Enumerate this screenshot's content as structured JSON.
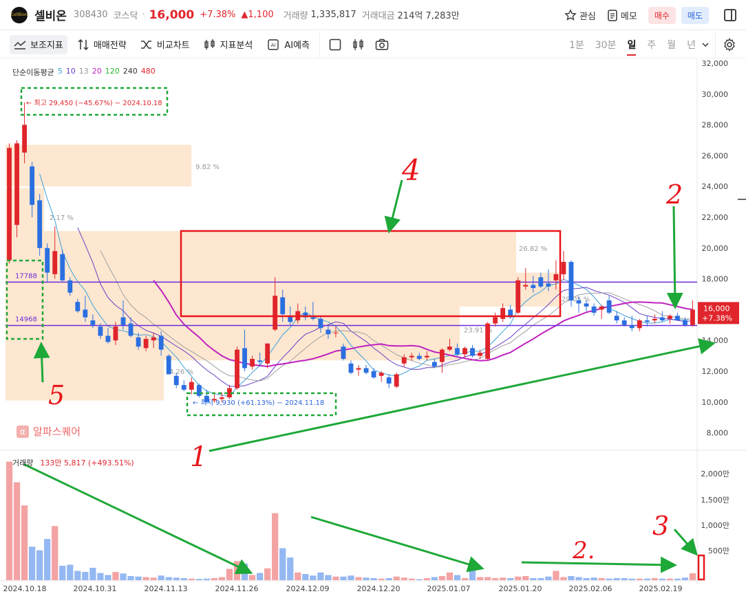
{
  "header": {
    "logo_text": "CellBion",
    "stock_name": "셀비온",
    "stock_code": "308430",
    "market": "코스닥",
    "separator": "·",
    "price": "16,000",
    "change_pct": "+7.38%",
    "change_abs": "▲1,100",
    "volume_label": "거래량",
    "volume_value": "1,335,817",
    "amount_label": "거래대금",
    "amount_value": "214억 7,283만",
    "watch_label": "관심",
    "memo_label": "메모",
    "buy_label": "매수",
    "sell_label": "매도"
  },
  "toolbar": {
    "indicators_label": "보조지표",
    "strategy_label": "매매전략",
    "compare_label": "비교차트",
    "analysis_label": "지표분석",
    "ai_label": "AI예측",
    "periods": [
      "1분",
      "30분",
      "일",
      "주",
      "월",
      "년"
    ],
    "selected_period": "일"
  },
  "ma_legend": {
    "title": "단순이동평균",
    "items": [
      {
        "label": "5",
        "color": "#3aa0d8"
      },
      {
        "label": "10",
        "color": "#6a3cc7"
      },
      {
        "label": "13",
        "color": "#999999"
      },
      {
        "label": "20",
        "color": "#c020c0"
      },
      {
        "label": "120",
        "color": "#2ab52a"
      },
      {
        "label": "240",
        "color": "#333333"
      },
      {
        "label": "480",
        "color": "#e0252c"
      }
    ]
  },
  "volume_legend": {
    "label": "거래량",
    "value": "133만 5,817 (+493.51%)"
  },
  "watermark": "알파스퀘어",
  "colors": {
    "up": "#e0252c",
    "down": "#2b6fe0",
    "vol_up": "#f3a3a3",
    "vol_down": "#94b8f2",
    "zone": "#fde3c8",
    "level_line": "#6a2bd8",
    "annotation_green": "#1ea838",
    "annotation_red": "#e8161b"
  },
  "chart_data": {
    "type": "candlestick",
    "y_ticks": [
      "32,000",
      "30,000",
      "28,000",
      "26,000",
      "24,000",
      "22,000",
      "20,000",
      "18,000",
      "16,000",
      "14,000",
      "12,000",
      "10,000",
      "8,000"
    ],
    "ylim": [
      7000,
      32500
    ],
    "volume_ticks": [
      "2,000만",
      "1,500만",
      "1,000만",
      "500만"
    ],
    "x_ticks": [
      "2024.10.18",
      "2024.10.31",
      "2024.11.13",
      "2024.11.26",
      "2024.12.09",
      "2024.12.20",
      "2025.01.07",
      "2025.01.20",
      "2025.02.06",
      "2025.02.19"
    ],
    "last_price_label": "16,000",
    "last_change_label": "+7.38%",
    "high_label": "최고 29,450 (−45.67%) − 2024.10.18",
    "low_label": "최저 9,930 (+61.13%) − 2024.11.18",
    "levels": [
      {
        "label": "17788",
        "value": 17788
      },
      {
        "label": "14968",
        "value": 14968
      }
    ],
    "zones": [
      {
        "label": "9.82 %",
        "from": 24000,
        "to": 26700
      },
      {
        "label": "2.17 %",
        "from": 10100,
        "to": 23900
      },
      {
        "label": "26.82 %",
        "from": 12700,
        "to": 21100
      },
      {
        "label": "23.91 %",
        "from": 12700,
        "to": 15500
      },
      {
        "label": "29.05 %",
        "from": 12700,
        "to": 18400
      },
      {
        "label": "4.26 %",
        "from": 10100,
        "to": 12600
      }
    ],
    "handwritten_labels": [
      "1",
      "2",
      "3",
      "4",
      "5",
      "2."
    ],
    "candles": [
      {
        "o": 19200,
        "h": 26800,
        "l": 19000,
        "c": 26500
      },
      {
        "o": 21500,
        "h": 27000,
        "l": 20700,
        "c": 26800
      },
      {
        "o": 26200,
        "h": 29450,
        "l": 25500,
        "c": 28000
      },
      {
        "o": 25300,
        "h": 25600,
        "l": 22000,
        "c": 22800
      },
      {
        "o": 23100,
        "h": 23500,
        "l": 19500,
        "c": 20000
      },
      {
        "o": 20000,
        "h": 20300,
        "l": 17800,
        "c": 18400
      },
      {
        "o": 18300,
        "h": 21400,
        "l": 18000,
        "c": 19800
      },
      {
        "o": 19600,
        "h": 19900,
        "l": 17800,
        "c": 17900
      },
      {
        "o": 17900,
        "h": 18100,
        "l": 16900,
        "c": 17100
      },
      {
        "o": 16500,
        "h": 16700,
        "l": 15800,
        "c": 15900
      },
      {
        "o": 16000,
        "h": 16900,
        "l": 15200,
        "c": 15500
      },
      {
        "o": 15300,
        "h": 15700,
        "l": 14800,
        "c": 15000
      },
      {
        "o": 14900,
        "h": 15100,
        "l": 14100,
        "c": 14300
      },
      {
        "o": 14300,
        "h": 14800,
        "l": 13800,
        "c": 13900
      },
      {
        "o": 14000,
        "h": 15200,
        "l": 13700,
        "c": 14900
      },
      {
        "o": 15500,
        "h": 16600,
        "l": 14700,
        "c": 15000
      },
      {
        "o": 15100,
        "h": 15500,
        "l": 14200,
        "c": 14300
      },
      {
        "o": 14200,
        "h": 14500,
        "l": 13400,
        "c": 13600
      },
      {
        "o": 13500,
        "h": 14300,
        "l": 13300,
        "c": 14100
      },
      {
        "o": 14000,
        "h": 14500,
        "l": 13500,
        "c": 14200
      },
      {
        "o": 14300,
        "h": 14600,
        "l": 13000,
        "c": 13400
      },
      {
        "o": 13000,
        "h": 13100,
        "l": 11800,
        "c": 11800
      },
      {
        "o": 11700,
        "h": 11900,
        "l": 10900,
        "c": 11100
      },
      {
        "o": 11100,
        "h": 11400,
        "l": 10700,
        "c": 10800
      },
      {
        "o": 10800,
        "h": 11600,
        "l": 10500,
        "c": 11300
      },
      {
        "o": 11100,
        "h": 11200,
        "l": 10300,
        "c": 10400
      },
      {
        "o": 10400,
        "h": 10800,
        "l": 9930,
        "c": 10000
      },
      {
        "o": 10100,
        "h": 10500,
        "l": 9950,
        "c": 10200
      },
      {
        "o": 10200,
        "h": 10600,
        "l": 10000,
        "c": 10300
      },
      {
        "o": 10300,
        "h": 11100,
        "l": 10200,
        "c": 10900
      },
      {
        "o": 10900,
        "h": 13600,
        "l": 10800,
        "c": 13400
      },
      {
        "o": 13500,
        "h": 14700,
        "l": 12000,
        "c": 12200
      },
      {
        "o": 12300,
        "h": 13000,
        "l": 12100,
        "c": 12800
      },
      {
        "o": 12700,
        "h": 13200,
        "l": 12300,
        "c": 12600
      },
      {
        "o": 12500,
        "h": 13800,
        "l": 12200,
        "c": 13800
      },
      {
        "o": 14700,
        "h": 18100,
        "l": 14600,
        "c": 16900
      },
      {
        "o": 16800,
        "h": 17300,
        "l": 15200,
        "c": 15700
      },
      {
        "o": 15600,
        "h": 16200,
        "l": 15000,
        "c": 15200
      },
      {
        "o": 15300,
        "h": 16400,
        "l": 15100,
        "c": 15900
      },
      {
        "o": 15800,
        "h": 16200,
        "l": 15300,
        "c": 15500
      },
      {
        "o": 15500,
        "h": 16500,
        "l": 15300,
        "c": 15400
      },
      {
        "o": 15400,
        "h": 15600,
        "l": 14500,
        "c": 14800
      },
      {
        "o": 14700,
        "h": 15000,
        "l": 14100,
        "c": 14400
      },
      {
        "o": 14500,
        "h": 14900,
        "l": 14200,
        "c": 14500
      },
      {
        "o": 13600,
        "h": 13800,
        "l": 12700,
        "c": 12800
      },
      {
        "o": 12500,
        "h": 12700,
        "l": 11800,
        "c": 11900
      },
      {
        "o": 12100,
        "h": 12400,
        "l": 11700,
        "c": 12200
      },
      {
        "o": 12200,
        "h": 12400,
        "l": 11800,
        "c": 11900
      },
      {
        "o": 12000,
        "h": 12200,
        "l": 11500,
        "c": 11600
      },
      {
        "o": 11700,
        "h": 12000,
        "l": 11300,
        "c": 11900
      },
      {
        "o": 11600,
        "h": 11800,
        "l": 10900,
        "c": 11200
      },
      {
        "o": 11000,
        "h": 11900,
        "l": 10900,
        "c": 11800
      },
      {
        "o": 12500,
        "h": 13100,
        "l": 12300,
        "c": 12900
      },
      {
        "o": 12900,
        "h": 13200,
        "l": 12700,
        "c": 13000
      },
      {
        "o": 13000,
        "h": 13200,
        "l": 12700,
        "c": 12800
      },
      {
        "o": 12900,
        "h": 13300,
        "l": 12700,
        "c": 13000
      },
      {
        "o": 12600,
        "h": 12800,
        "l": 12200,
        "c": 12300
      },
      {
        "o": 12600,
        "h": 13500,
        "l": 11900,
        "c": 13400
      },
      {
        "o": 13400,
        "h": 14100,
        "l": 13300,
        "c": 13600
      },
      {
        "o": 13500,
        "h": 13800,
        "l": 12900,
        "c": 13100
      },
      {
        "o": 13100,
        "h": 13600,
        "l": 12900,
        "c": 13500
      },
      {
        "o": 13500,
        "h": 13700,
        "l": 12900,
        "c": 13000
      },
      {
        "o": 13000,
        "h": 13400,
        "l": 12800,
        "c": 13200
      },
      {
        "o": 12800,
        "h": 15200,
        "l": 12700,
        "c": 15100
      },
      {
        "o": 15100,
        "h": 15800,
        "l": 14900,
        "c": 15500
      },
      {
        "o": 15400,
        "h": 16400,
        "l": 15200,
        "c": 16100
      },
      {
        "o": 16000,
        "h": 16300,
        "l": 15400,
        "c": 15500
      },
      {
        "o": 15800,
        "h": 18100,
        "l": 15700,
        "c": 17900
      },
      {
        "o": 17500,
        "h": 18700,
        "l": 17300,
        "c": 17600
      },
      {
        "o": 17600,
        "h": 18200,
        "l": 17100,
        "c": 17400
      },
      {
        "o": 18100,
        "h": 18400,
        "l": 17400,
        "c": 17500
      },
      {
        "o": 17700,
        "h": 18600,
        "l": 17200,
        "c": 17500
      },
      {
        "o": 17900,
        "h": 19200,
        "l": 17300,
        "c": 18300
      },
      {
        "o": 18300,
        "h": 19800,
        "l": 17900,
        "c": 19100
      },
      {
        "o": 19100,
        "h": 19200,
        "l": 16200,
        "c": 16600
      },
      {
        "o": 16600,
        "h": 16800,
        "l": 15800,
        "c": 16400
      },
      {
        "o": 16400,
        "h": 16600,
        "l": 15900,
        "c": 16200
      },
      {
        "o": 16200,
        "h": 16400,
        "l": 15600,
        "c": 15800
      },
      {
        "o": 16000,
        "h": 16300,
        "l": 15400,
        "c": 16200
      },
      {
        "o": 16600,
        "h": 16900,
        "l": 15700,
        "c": 15800
      },
      {
        "o": 15600,
        "h": 15900,
        "l": 15100,
        "c": 15300
      },
      {
        "o": 15300,
        "h": 15500,
        "l": 14900,
        "c": 15000
      },
      {
        "o": 15000,
        "h": 15600,
        "l": 14600,
        "c": 14800
      },
      {
        "o": 14800,
        "h": 15400,
        "l": 14600,
        "c": 15300
      },
      {
        "o": 15300,
        "h": 15600,
        "l": 14900,
        "c": 15200
      },
      {
        "o": 15300,
        "h": 15700,
        "l": 15100,
        "c": 15400
      },
      {
        "o": 15500,
        "h": 15900,
        "l": 15200,
        "c": 15300
      },
      {
        "o": 15400,
        "h": 15700,
        "l": 15100,
        "c": 15600
      },
      {
        "o": 15600,
        "h": 15800,
        "l": 15300,
        "c": 15300
      },
      {
        "o": 15300,
        "h": 15500,
        "l": 14900,
        "c": 15000
      },
      {
        "o": 15000,
        "h": 16600,
        "l": 14900,
        "c": 16000
      }
    ],
    "volume": [
      2300,
      1900,
      1450,
      650,
      580,
      800,
      1050,
      280,
      300,
      180,
      160,
      240,
      140,
      100,
      160,
      130,
      80,
      70,
      60,
      50,
      90,
      60,
      50,
      40,
      30,
      25,
      30,
      40,
      60,
      220,
      370,
      320,
      100,
      140,
      230,
      1300,
      620,
      440,
      150,
      120,
      90,
      150,
      100,
      70,
      70,
      90,
      60,
      50,
      40,
      30,
      40,
      70,
      50,
      30,
      20,
      40,
      60,
      80,
      150,
      100,
      40,
      220,
      60,
      60,
      40,
      50,
      40,
      70,
      80,
      40,
      40,
      70,
      180,
      60,
      80,
      60,
      40,
      50,
      40,
      30,
      40,
      40,
      30,
      30,
      30,
      40,
      30,
      30,
      30,
      50,
      134
    ]
  }
}
